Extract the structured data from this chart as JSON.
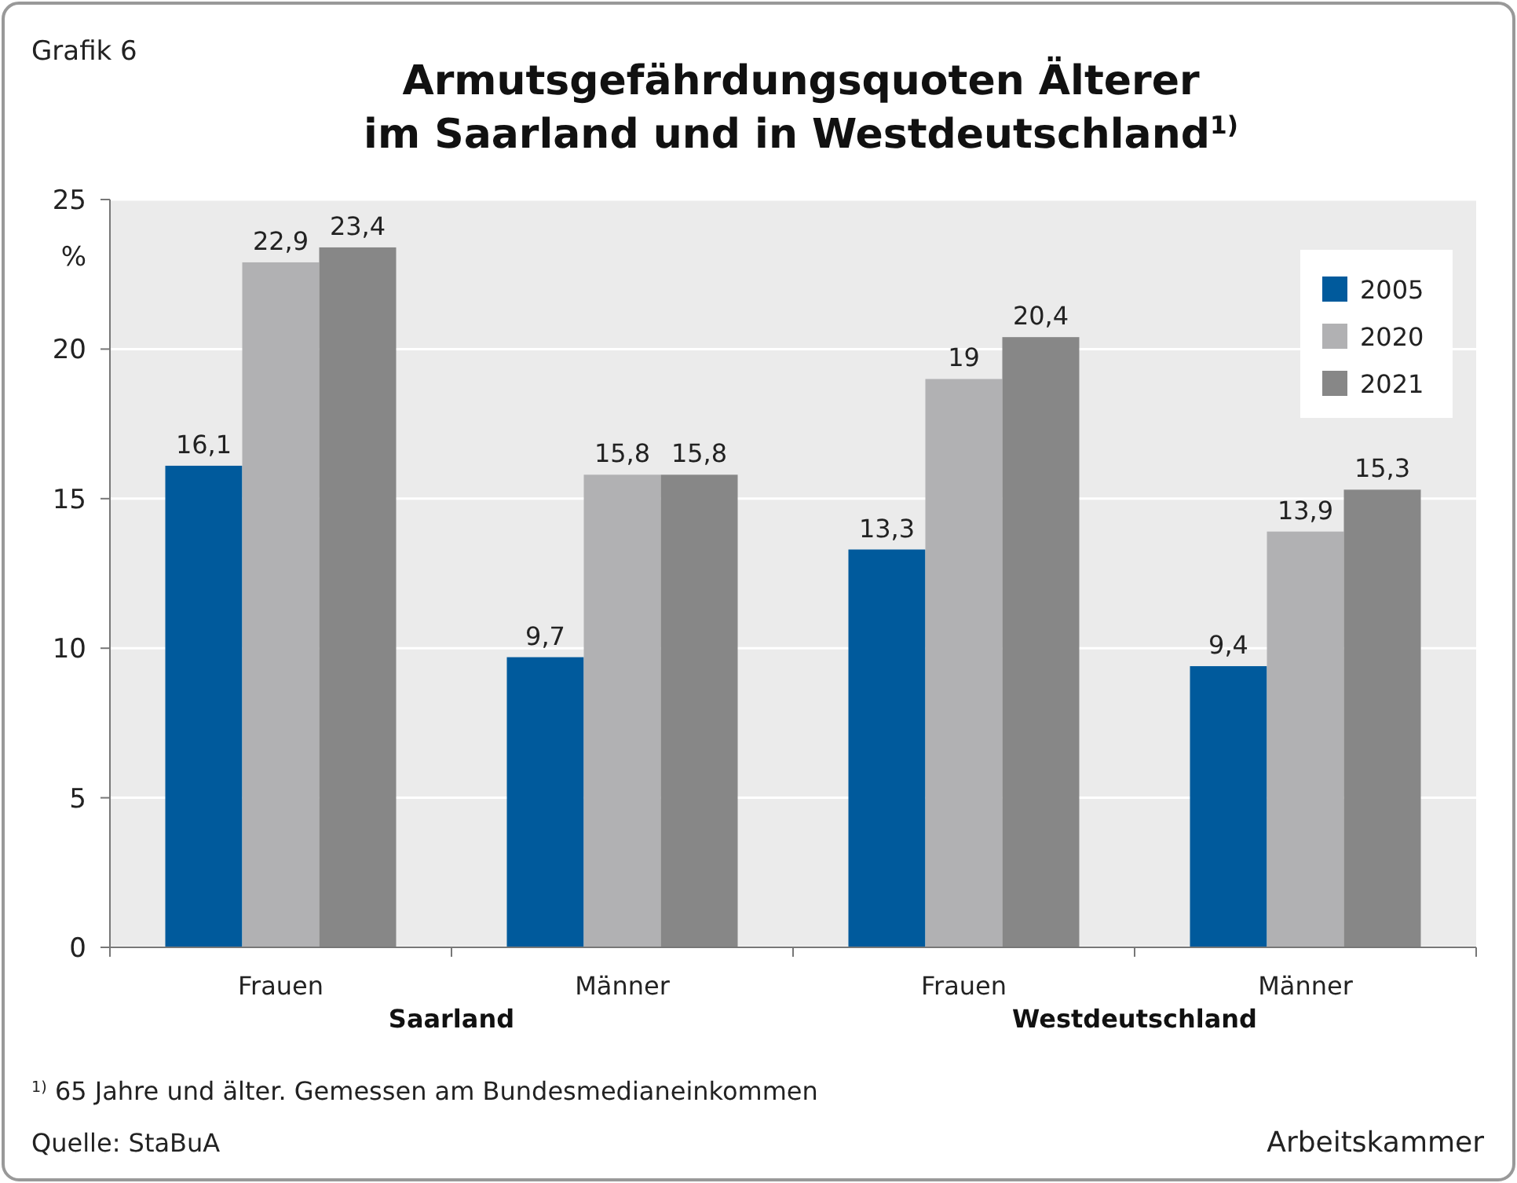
{
  "chart_data": {
    "type": "bar",
    "title": "Armutsgefährdungsquoten Älterer\nim Saarland und in Westdeutschland$^{1)}$",
    "ylabel": "%",
    "categories": [
      "Frauen",
      "Männer",
      "Frauen",
      "Männer"
    ],
    "series": [
      {
        "name": "2005",
        "color": "#005a9c",
        "values": [
          16.1,
          9.7,
          13.3,
          9.4
        ],
        "value_labels": [
          "16,1",
          "9,7",
          "13,3",
          "9,4"
        ]
      },
      {
        "name": "2020",
        "color": "#b1b1b3",
        "values": [
          22.9,
          15.8,
          19,
          13.9
        ],
        "value_labels": [
          "22,9",
          "15,8",
          "19",
          "13,9"
        ]
      },
      {
        "name": "2021",
        "color": "#878787",
        "values": [
          23.4,
          15.8,
          20.4,
          15.3
        ],
        "value_labels": [
          "23,4",
          "15,8",
          "20,4",
          "15,3"
        ]
      }
    ],
    "ylim": [
      0,
      25
    ],
    "yticks": [
      0,
      5,
      10,
      15,
      20,
      25
    ],
    "grid": "y",
    "legend": "top right",
    "annotations": [
      "Grafik 6",
      "Saarland",
      "Westdeutschland",
      "$^{1)}$ 65 Jahre und älter. Gemessen am Bundesmedianeinkommen",
      "Quelle: StaBuA",
      "Arbeitskammer"
    ]
  }
}
